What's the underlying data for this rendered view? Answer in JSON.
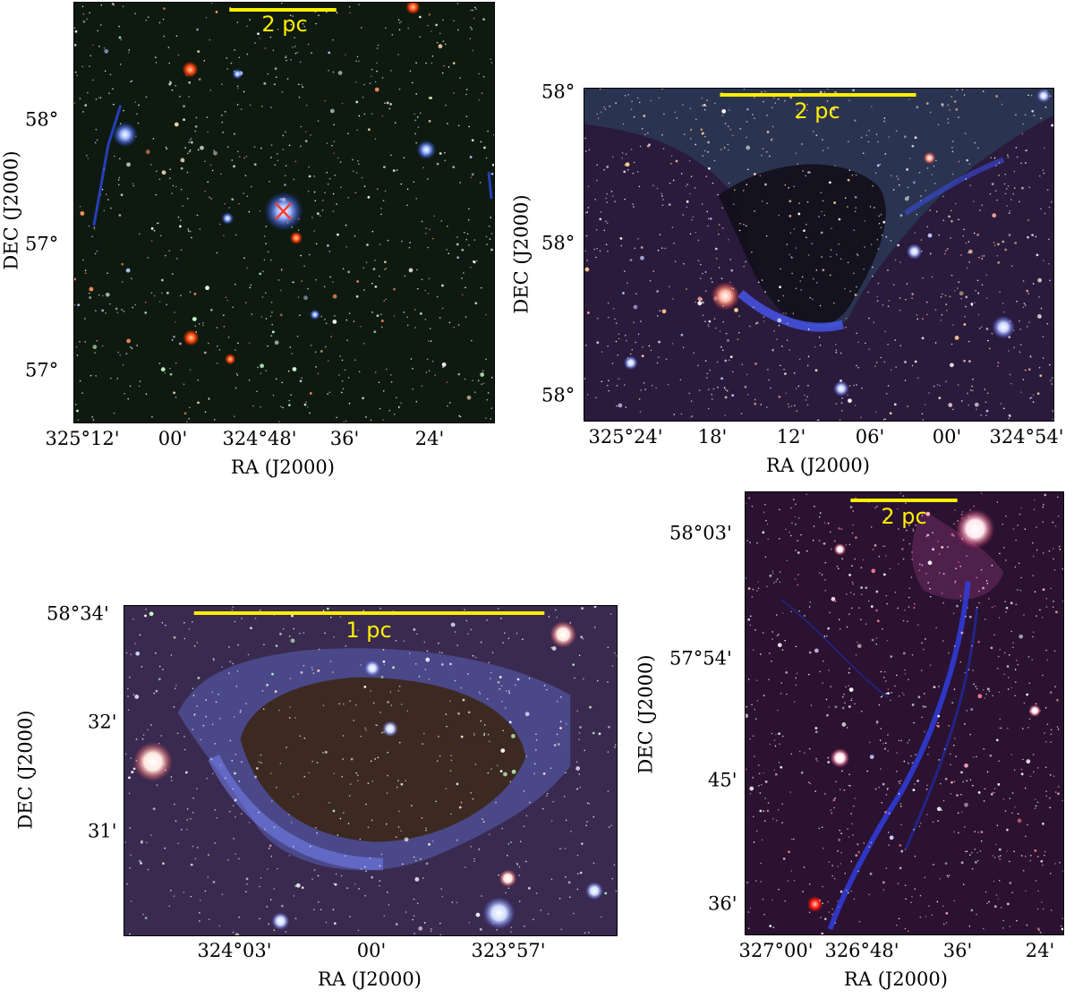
{
  "colors": {
    "scalebar": "#ffee00",
    "marker": "#ff3b2e"
  },
  "panels": [
    {
      "name": "top-left",
      "scale_label": "2 pc",
      "xlabel": "RA (J2000)",
      "ylabel": "DEC (J2000)",
      "xticks": [
        "325°12'",
        "00'",
        "324°48'",
        "36'",
        "24'"
      ],
      "yticks": [
        "58°",
        "57°",
        "57°"
      ],
      "marker_icon": "red-x-marker-icon"
    },
    {
      "name": "top-right",
      "scale_label": "2 pc",
      "xlabel": "RA (J2000)",
      "ylabel": "DEC (J2000)",
      "xticks": [
        "325°24'",
        "18'",
        "12'",
        "06'",
        "00'",
        "324°54'"
      ],
      "yticks": [
        "58°",
        "58°",
        "58°"
      ]
    },
    {
      "name": "bottom-left",
      "scale_label": "1 pc",
      "xlabel": "RA (J2000)",
      "ylabel": "DEC (J2000)",
      "xticks": [
        "324°03'",
        "00'",
        "323°57'"
      ],
      "yticks": [
        "58°34'",
        "32'",
        "31'"
      ]
    },
    {
      "name": "bottom-right",
      "scale_label": "2 pc",
      "xlabel": "RA (J2000)",
      "ylabel": "DEC (J2000)",
      "xticks": [
        "327°00'",
        "326°48'",
        "36'",
        "24'"
      ],
      "yticks": [
        "58°03'",
        "57°54'",
        "45'",
        "36'"
      ]
    }
  ]
}
